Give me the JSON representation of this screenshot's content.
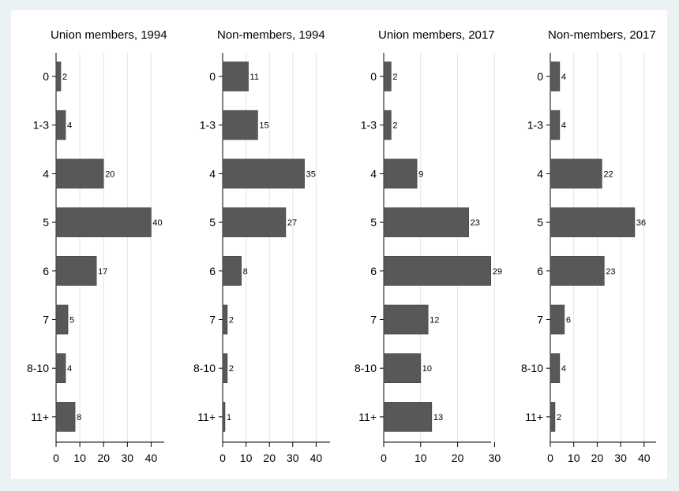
{
  "chart_data": [
    {
      "type": "bar",
      "orientation": "horizontal",
      "title": "Union members, 1994",
      "categories": [
        "0",
        "1-3",
        "4",
        "5",
        "6",
        "7",
        "8-10",
        "11+"
      ],
      "values": [
        2,
        4,
        20,
        40,
        17,
        5,
        4,
        8
      ],
      "xlim": [
        0,
        45
      ],
      "xticks": [
        0,
        10,
        20,
        30,
        40
      ],
      "grid": true,
      "bar_color": "#585858"
    },
    {
      "type": "bar",
      "orientation": "horizontal",
      "title": "Non-members, 1994",
      "categories": [
        "0",
        "1-3",
        "4",
        "5",
        "6",
        "7",
        "8-10",
        "11+"
      ],
      "values": [
        11,
        15,
        35,
        27,
        8,
        2,
        2,
        1
      ],
      "xlim": [
        0,
        45
      ],
      "xticks": [
        0,
        10,
        20,
        30,
        40
      ],
      "grid": true,
      "bar_color": "#585858"
    },
    {
      "type": "bar",
      "orientation": "horizontal",
      "title": "Union members, 2017",
      "categories": [
        "0",
        "1-3",
        "4",
        "5",
        "6",
        "7",
        "8-10",
        "11+"
      ],
      "values": [
        2,
        2,
        9,
        23,
        29,
        12,
        10,
        13
      ],
      "xlim": [
        0,
        34
      ],
      "xticks": [
        0,
        10,
        20,
        30
      ],
      "grid": true,
      "bar_color": "#585858"
    },
    {
      "type": "bar",
      "orientation": "horizontal",
      "title": "Non-members, 2017",
      "categories": [
        "0",
        "1-3",
        "4",
        "5",
        "6",
        "7",
        "8-10",
        "11+"
      ],
      "values": [
        4,
        4,
        22,
        36,
        23,
        6,
        4,
        2
      ],
      "xlim": [
        0,
        45
      ],
      "xticks": [
        0,
        10,
        20,
        30,
        40
      ],
      "grid": true,
      "bar_color": "#585858"
    }
  ]
}
